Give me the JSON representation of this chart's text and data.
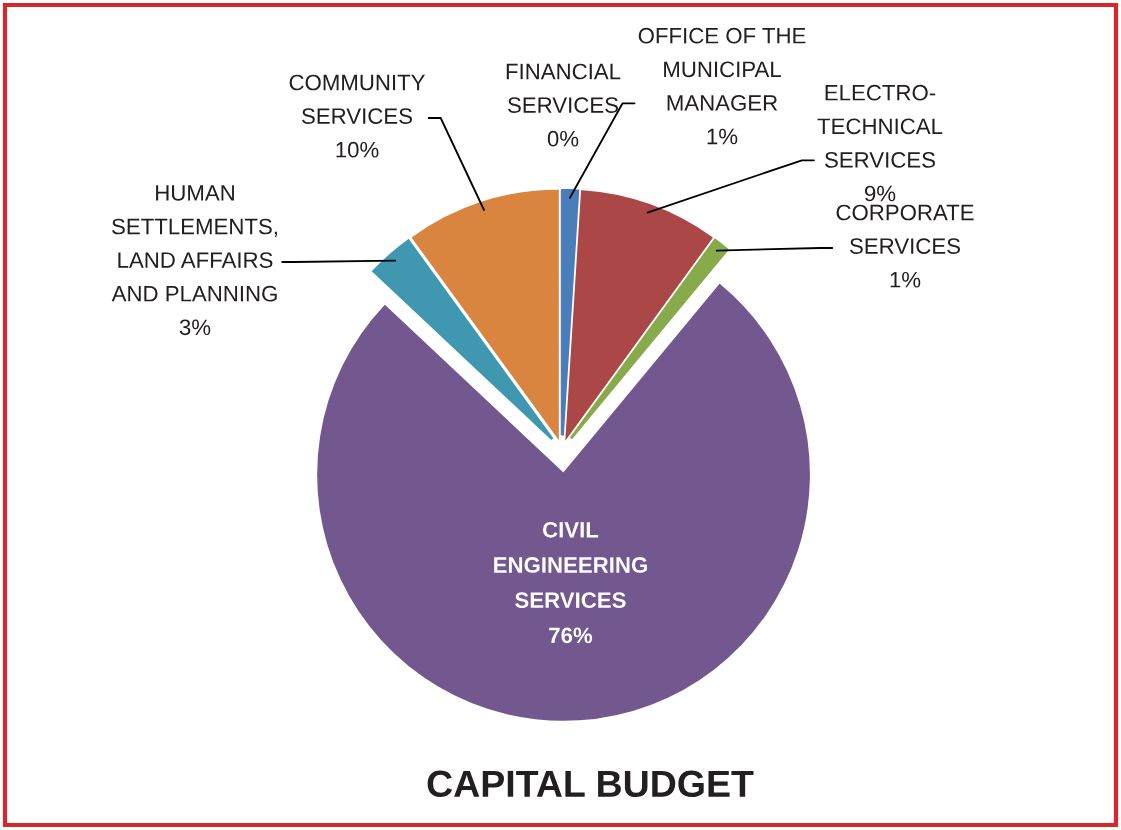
{
  "chart_data": {
    "type": "pie",
    "title": "CAPITAL BUDGET",
    "categories": [
      "FINANCIAL\nSERVICES",
      "OFFICE OF THE\nMUNICIPAL\nMANAGER",
      "ELECTRO-\nTECHNICAL\nSERVICES",
      "CORPORATE\nSERVICES",
      "CIVIL\nENGINEERING\nSERVICES",
      "HUMAN\nSETTLEMENTS,\nLAND AFFAIRS\nAND PLANNING",
      "COMMUNITY\nSERVICES"
    ],
    "values": [
      0,
      1,
      9,
      1,
      76,
      3,
      10
    ],
    "value_labels": [
      "0%",
      "1%",
      "9%",
      "1%",
      "76%",
      "3%",
      "10%"
    ],
    "colors": [
      "#95b3d7",
      "#4a7ebb",
      "#ab4747",
      "#87aa4a",
      "#735890",
      "#3f98b0",
      "#d9853f"
    ]
  }
}
